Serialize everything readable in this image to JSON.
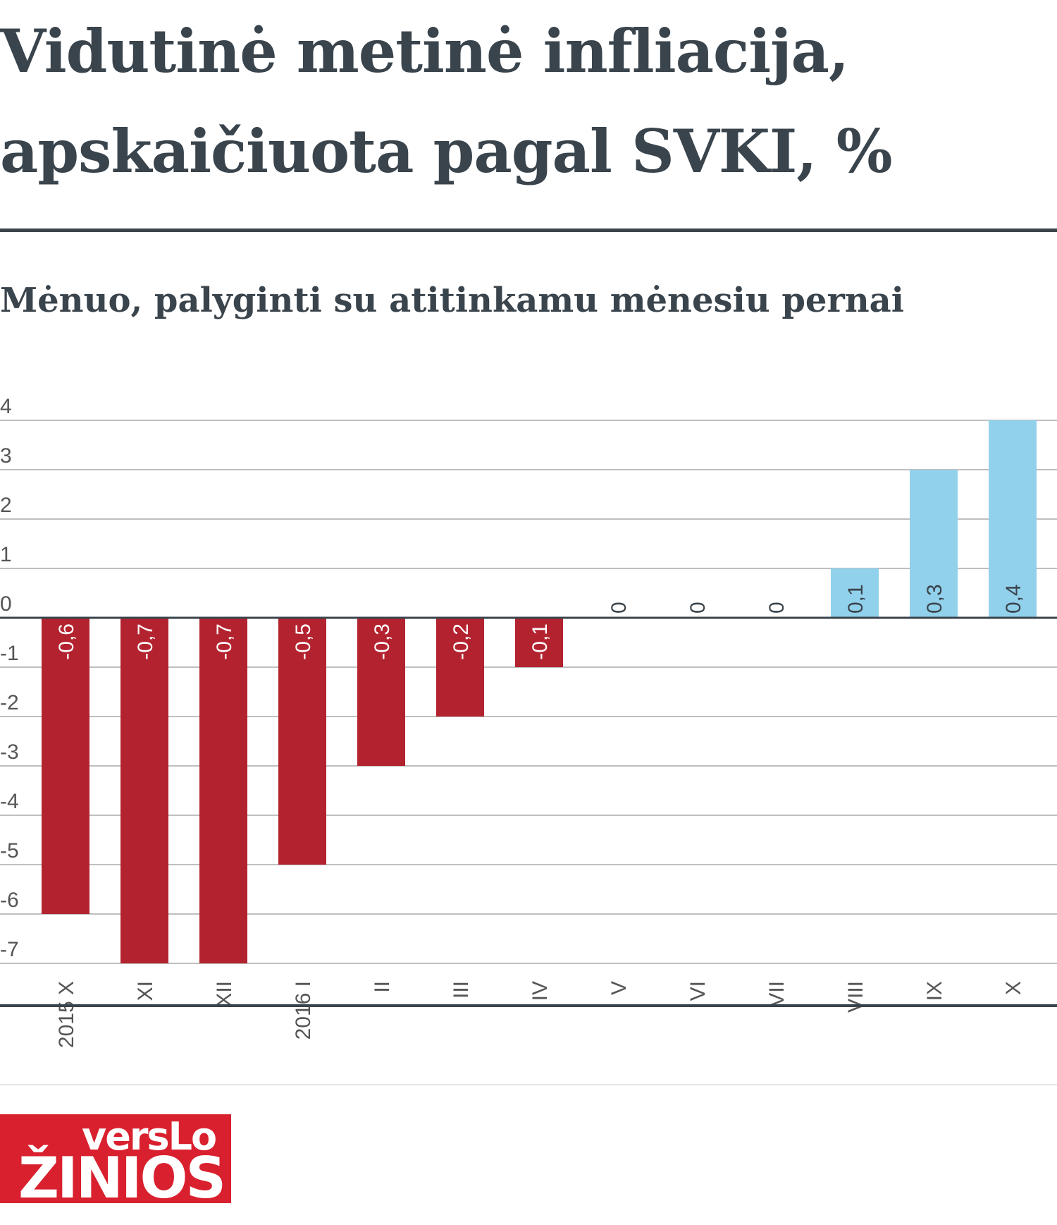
{
  "chart_data": {
    "type": "bar",
    "title_line1": "Vidutinė metinė infliacija,",
    "title_line2": "apskaičiuota pagal SVKI, %",
    "subtitle": "Mėnuo, palyginti su atitinkamu mėnesiu pernai",
    "xlabel": "",
    "ylabel": "",
    "categories": [
      "2015 X",
      "XI",
      "XII",
      "2016 I",
      "II",
      "III",
      "IV",
      "V",
      "VI",
      "VII",
      "VIII",
      "IX",
      "X"
    ],
    "values": [
      -0.6,
      -0.7,
      -0.7,
      -0.5,
      -0.3,
      -0.2,
      -0.1,
      0,
      0,
      0,
      0.1,
      0.3,
      0.4
    ],
    "value_labels": [
      "-0,6",
      "-0,7",
      "-0,7",
      "-0,5",
      "-0,3",
      "-0,2",
      "-0,1",
      "0",
      "0",
      "0",
      "0,1",
      "0,3",
      "0,4"
    ],
    "y_ticks": [
      "4",
      "3",
      "2",
      "1",
      "0",
      "-1",
      "-2",
      "-3",
      "-4",
      "-5",
      "-6",
      "-7"
    ],
    "ylim": [
      -0.7,
      0.4
    ],
    "grid": true,
    "legend": "none",
    "colors": {
      "negative": "#b3232f",
      "positive": "#92d1ec",
      "text": "#3a444c"
    }
  },
  "logo": {
    "line1": "versLo",
    "line2": "ŽINIOS"
  }
}
